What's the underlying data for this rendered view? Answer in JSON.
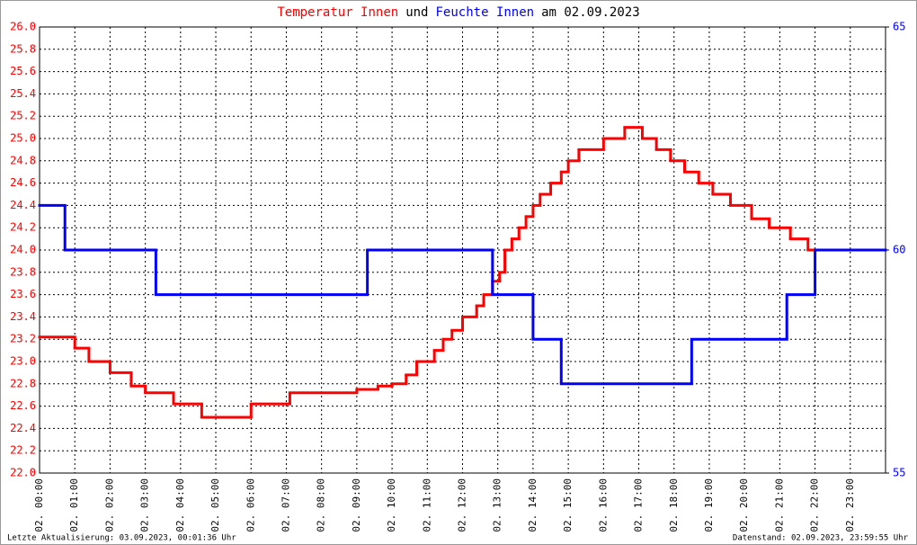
{
  "chart_data": {
    "type": "line",
    "title_parts": [
      {
        "text": "Temperatur Innen",
        "color": "#ff0000"
      },
      {
        "text": "und",
        "color": "#000000"
      },
      {
        "text": "Feuchte Innen",
        "color": "#0000ff"
      },
      {
        "text": "am 02.09.2023",
        "color": "#000000"
      }
    ],
    "footer_left": "Letzte Aktualisierung: 03.09.2023, 00:01:36 Uhr",
    "footer_right": "Datenstand: 02.09.2023, 23:59:55 Uhr",
    "grid": true,
    "step": true,
    "xlim": [
      0,
      24
    ],
    "xticks": [
      {
        "value": 0,
        "label": "02. 00:00"
      },
      {
        "value": 1,
        "label": "02. 01:00"
      },
      {
        "value": 2,
        "label": "02. 02:00"
      },
      {
        "value": 3,
        "label": "02. 03:00"
      },
      {
        "value": 4,
        "label": "02. 04:00"
      },
      {
        "value": 5,
        "label": "02. 05:00"
      },
      {
        "value": 6,
        "label": "02. 06:00"
      },
      {
        "value": 7,
        "label": "02. 07:00"
      },
      {
        "value": 8,
        "label": "02. 08:00"
      },
      {
        "value": 9,
        "label": "02. 09:00"
      },
      {
        "value": 10,
        "label": "02. 10:00"
      },
      {
        "value": 11,
        "label": "02. 11:00"
      },
      {
        "value": 12,
        "label": "02. 12:00"
      },
      {
        "value": 13,
        "label": "02. 13:00"
      },
      {
        "value": 14,
        "label": "02. 14:00"
      },
      {
        "value": 15,
        "label": "02. 15:00"
      },
      {
        "value": 16,
        "label": "02. 16:00"
      },
      {
        "value": 17,
        "label": "02. 17:00"
      },
      {
        "value": 18,
        "label": "02. 18:00"
      },
      {
        "value": 19,
        "label": "02. 19:00"
      },
      {
        "value": 20,
        "label": "02. 20:00"
      },
      {
        "value": 21,
        "label": "02. 21:00"
      },
      {
        "value": 22,
        "label": "02. 22:00"
      },
      {
        "value": 23,
        "label": "02. 23:00"
      }
    ],
    "ylim": [
      22,
      26
    ],
    "yticks": [
      {
        "value": 22,
        "label": "22.0"
      },
      22.2,
      22.4,
      22.6,
      22.8,
      {
        "value": 23,
        "label": "23.0"
      },
      23.2,
      23.4,
      23.6,
      23.8,
      {
        "value": 24,
        "label": "24.0"
      },
      24.2,
      24.4,
      24.6,
      24.8,
      {
        "value": 25,
        "label": "25.0"
      },
      25.2,
      25.4,
      25.6,
      25.8,
      {
        "value": 26,
        "label": "26.0"
      }
    ],
    "y_color": "#ff0000",
    "y2lim": [
      55,
      65
    ],
    "y2ticks": [
      55,
      60,
      65
    ],
    "y2_color": "#0000ff",
    "series": [
      {
        "name": "Temperatur Innen",
        "color": "#ff0000",
        "x": [
          0,
          1.0,
          1.4,
          2.0,
          2.6,
          3.0,
          3.8,
          4.6,
          6.0,
          7.1,
          9.0,
          9.6,
          10.0,
          10.4,
          10.7,
          11.2,
          11.45,
          11.7,
          12.0,
          12.4,
          12.6,
          12.85,
          13.05,
          13.2,
          13.4,
          13.6,
          13.8,
          14.0,
          14.2,
          14.5,
          14.8,
          15.0,
          15.3,
          16.0,
          16.6,
          17.1,
          17.5,
          17.9,
          18.3,
          18.7,
          19.1,
          19.6,
          20.2,
          20.7,
          21.3,
          21.8
        ],
        "values": [
          23.22,
          23.12,
          23.0,
          22.9,
          22.78,
          22.72,
          22.62,
          22.5,
          22.62,
          22.72,
          22.75,
          22.78,
          22.8,
          22.88,
          23.0,
          23.1,
          23.2,
          23.28,
          23.4,
          23.5,
          23.6,
          23.72,
          23.8,
          24.0,
          24.1,
          24.2,
          24.3,
          24.4,
          24.5,
          24.6,
          24.7,
          24.8,
          24.9,
          25.0,
          25.1,
          25.0,
          24.9,
          24.8,
          24.7,
          24.6,
          24.5,
          24.4,
          24.28,
          24.2,
          24.1,
          24.0
        ]
      },
      {
        "name": "Feuchte Innen",
        "color": "#0000ff",
        "axis": "y2",
        "x": [
          0,
          0.72,
          3.3,
          9.3,
          12.85,
          14.0,
          14.8,
          18.5,
          21.2,
          22.0
        ],
        "values": [
          61,
          60,
          59,
          60,
          59,
          58,
          57,
          58,
          59,
          60
        ]
      }
    ]
  }
}
